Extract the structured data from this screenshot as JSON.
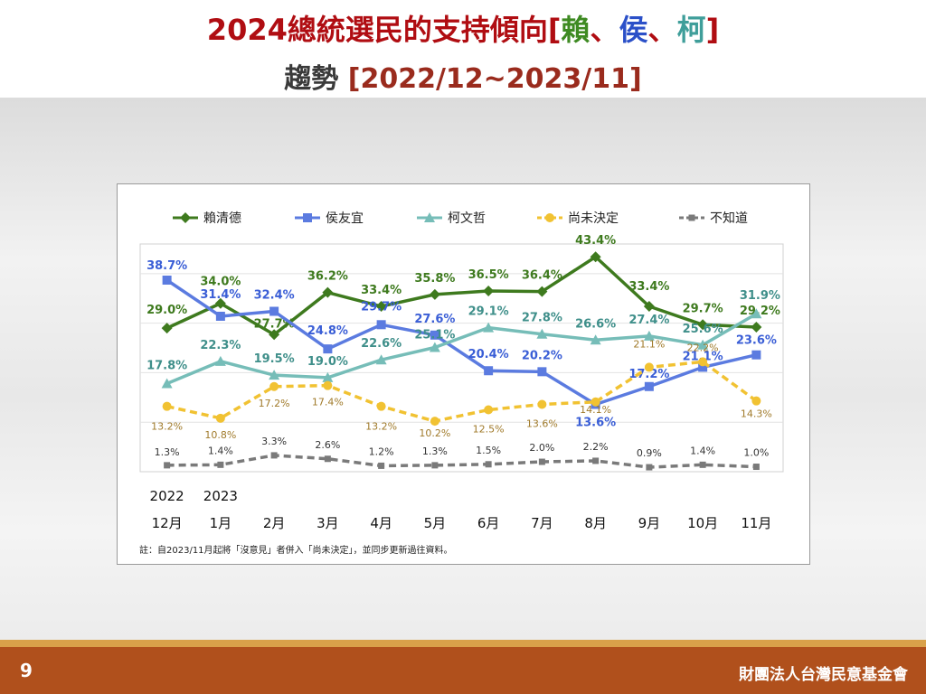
{
  "header": {
    "title_prefix": "2024總統選民的支持傾向[",
    "title_name_1": "賴",
    "title_sep_1": "、",
    "title_name_2": "侯",
    "title_sep_2": "、",
    "title_name_3": "柯",
    "title_suffix": "]",
    "subtitle_prefix": "趨勢 ",
    "subtitle_range": "[2022/12~2023/11]"
  },
  "colors": {
    "title_red": "#b00d12",
    "name_green": "#3e8a22",
    "name_blue": "#2b50c8",
    "name_teal": "#3f9e9a",
    "footer_brown": "#b0501c",
    "footer_gold": "#d9a14a"
  },
  "footer": {
    "page_number": "9",
    "organization": "財團法人台灣民意基金會"
  },
  "chart_data": {
    "type": "line",
    "categories": [
      "12月",
      "1月",
      "2月",
      "3月",
      "4月",
      "5月",
      "6月",
      "7月",
      "8月",
      "9月",
      "10月",
      "11月"
    ],
    "year_labels": [
      {
        "index": 0,
        "text": "2022"
      },
      {
        "index": 1,
        "text": "2023"
      }
    ],
    "ylim": [
      0,
      46
    ],
    "grid": true,
    "legend_position": "top",
    "note": "註：自2023/11月起將「沒意見」者併入「尚未決定」，並同步更新過往資料。",
    "series": [
      {
        "name": "賴清德",
        "color": "#3e7a1e",
        "label_color": "#3e7a1e",
        "marker": "diamond",
        "dashed": false,
        "values": [
          29.0,
          34.0,
          27.7,
          36.2,
          33.4,
          35.8,
          36.5,
          36.4,
          43.4,
          33.4,
          29.7,
          29.2
        ],
        "labels": [
          "29.0%",
          "34.0%",
          "27.7%",
          "36.2%",
          "33.4%",
          "35.8%",
          "36.5%",
          "36.4%",
          "43.4%",
          "33.4%",
          "29.7%",
          "29.2%"
        ]
      },
      {
        "name": "侯友宜",
        "color": "#5b7be0",
        "label_color": "#3a5ed6",
        "marker": "square",
        "dashed": false,
        "values": [
          38.7,
          31.4,
          32.4,
          24.8,
          29.7,
          27.6,
          20.4,
          20.2,
          13.6,
          17.2,
          21.1,
          23.6
        ],
        "labels": [
          "38.7%",
          "31.4%",
          "32.4%",
          "24.8%",
          "29.7%",
          "27.6%",
          "20.4%",
          "20.2%",
          "13.6%",
          "17.2%",
          "21.1%",
          "23.6%"
        ]
      },
      {
        "name": "柯文哲",
        "color": "#76bdb8",
        "label_color": "#3f8f8a",
        "marker": "triangle",
        "dashed": false,
        "values": [
          17.8,
          22.3,
          19.5,
          19.0,
          22.6,
          25.1,
          29.1,
          27.8,
          26.6,
          27.4,
          25.6,
          31.9
        ],
        "labels": [
          "17.8%",
          "22.3%",
          "19.5%",
          "19.0%",
          "22.6%",
          "25.1%",
          "29.1%",
          "27.8%",
          "26.6%",
          "27.4%",
          "25.6%",
          "31.9%"
        ]
      },
      {
        "name": "尚未決定",
        "color": "#f1c232",
        "label_color": "#a07a2a",
        "marker": "circle",
        "dashed": true,
        "values": [
          13.2,
          10.8,
          17.2,
          17.4,
          13.2,
          10.2,
          12.5,
          13.6,
          14.1,
          21.1,
          22.2,
          14.3
        ],
        "labels": [
          "13.2%",
          "10.8%",
          "17.2%",
          "17.4%",
          "13.2%",
          "10.2%",
          "12.5%",
          "13.6%",
          "14.1%",
          "21.1%",
          "22.2%",
          "14.3%"
        ]
      },
      {
        "name": "不知道",
        "color": "#7a7a7a",
        "label_color": "#333333",
        "marker": "square-small",
        "dashed": true,
        "values": [
          1.3,
          1.4,
          3.3,
          2.6,
          1.2,
          1.3,
          1.5,
          2.0,
          2.2,
          0.9,
          1.4,
          1.0
        ],
        "labels": [
          "1.3%",
          "1.4%",
          "3.3%",
          "2.6%",
          "1.2%",
          "1.3%",
          "1.5%",
          "2.0%",
          "2.2%",
          "0.9%",
          "1.4%",
          "1.0%"
        ]
      }
    ]
  }
}
